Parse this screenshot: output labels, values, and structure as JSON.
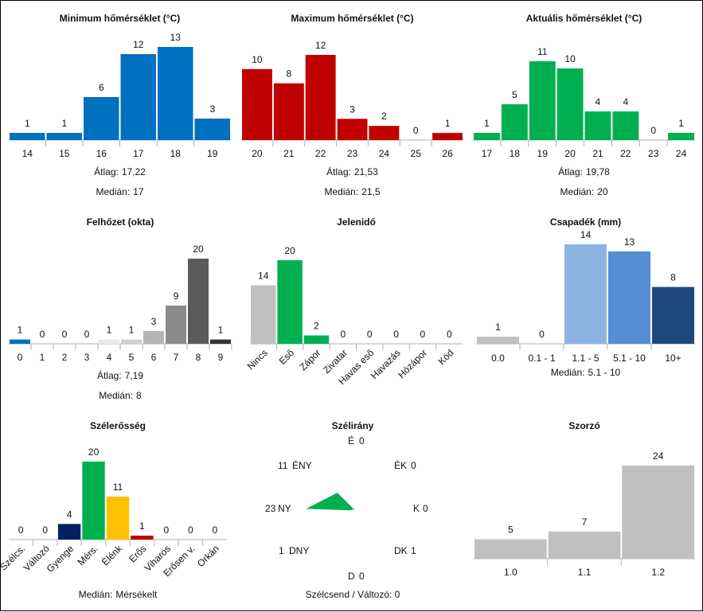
{
  "chart_data": [
    {
      "type": "bar",
      "title": "Minimum hőmérséklet (°C)",
      "categories": [
        "14",
        "15",
        "16",
        "17",
        "18",
        "19"
      ],
      "values": [
        1,
        1,
        6,
        12,
        13,
        3
      ],
      "colors": [
        "#0070c0",
        "#0070c0",
        "#0070c0",
        "#0070c0",
        "#0070c0",
        "#0070c0"
      ],
      "stats": [
        {
          "label": "Átlag:",
          "value": "17,22"
        },
        {
          "label": "Medián:",
          "value": "17"
        }
      ]
    },
    {
      "type": "bar",
      "title": "Maximum hőmérséklet (°C)",
      "categories": [
        "20",
        "21",
        "22",
        "23",
        "24",
        "25",
        "26"
      ],
      "values": [
        10,
        8,
        12,
        3,
        2,
        0,
        1
      ],
      "colors": [
        "#c00000",
        "#c00000",
        "#c00000",
        "#c00000",
        "#c00000",
        "#c00000",
        "#c00000"
      ],
      "stats": [
        {
          "label": "Átlag:",
          "value": "21,53"
        },
        {
          "label": "Medián:",
          "value": "21,5"
        }
      ]
    },
    {
      "type": "bar",
      "title": "Aktuális hőmérséklet (°C)",
      "categories": [
        "17",
        "18",
        "19",
        "20",
        "21",
        "22",
        "23",
        "24"
      ],
      "values": [
        1,
        5,
        11,
        10,
        4,
        4,
        0,
        1
      ],
      "colors": [
        "#00b050",
        "#00b050",
        "#00b050",
        "#00b050",
        "#00b050",
        "#00b050",
        "#00b050",
        "#00b050"
      ],
      "stats": [
        {
          "label": "Átlag:",
          "value": "19,78"
        },
        {
          "label": "Medián:",
          "value": "20"
        }
      ]
    },
    {
      "type": "bar",
      "title": "Felhőzet (okta)",
      "categories": [
        "0",
        "1",
        "2",
        "3",
        "4",
        "5",
        "6",
        "7",
        "8",
        "9"
      ],
      "values": [
        1,
        0,
        0,
        0,
        1,
        1,
        3,
        9,
        20,
        1
      ],
      "colors": [
        "#0070c0",
        "#ffffff",
        "#ffffff",
        "#ffffff",
        "#e8e8e8",
        "#d0d0d0",
        "#b3b3b3",
        "#8a8a8a",
        "#5a5a5a",
        "#333333"
      ],
      "stats": [
        {
          "label": "Átlag:",
          "value": "7,19"
        },
        {
          "label": "Medián:",
          "value": "8"
        }
      ]
    },
    {
      "type": "bar",
      "title": "Jelenidő",
      "categories": [
        "Nincs",
        "Eső",
        "Zápor",
        "Zivatar",
        "Havas eső",
        "Havazás",
        "Hózápor",
        "Köd"
      ],
      "values": [
        14,
        20,
        2,
        0,
        0,
        0,
        0,
        0
      ],
      "colors": [
        "#c0c0c0",
        "#00b050",
        "#00b050",
        "#00b050",
        "#00b050",
        "#00b050",
        "#00b050",
        "#00b050"
      ],
      "stats": []
    },
    {
      "type": "bar",
      "title": "Csapadék (mm)",
      "categories": [
        "0.0",
        "0.1 - 1",
        "1.1 - 5",
        "5.1 - 10",
        "10+"
      ],
      "values": [
        1,
        0,
        14,
        13,
        8
      ],
      "colors": [
        "#c0c0c0",
        "#b4c7e7",
        "#8db3e2",
        "#558ed5",
        "#1f497d"
      ],
      "stats": [
        {
          "label": "Medián:",
          "value": "5.1 - 10"
        }
      ]
    },
    {
      "type": "bar",
      "title": "Szélerősség",
      "categories": [
        "Szélcs.",
        "Változó",
        "Gyenge",
        "Mérs.",
        "Élénk",
        "Erős",
        "Viharos",
        "Erősen v.",
        "Orkán"
      ],
      "values": [
        0,
        0,
        4,
        20,
        11,
        1,
        0,
        0,
        0
      ],
      "colors": [
        "#c0c0c0",
        "#c0c0c0",
        "#002060",
        "#00b050",
        "#ffc000",
        "#c00000",
        "#7030a0",
        "#7030a0",
        "#7030a0"
      ],
      "stats": [
        {
          "label": "Medián:",
          "value": "Mérsékelt"
        }
      ]
    },
    {
      "type": "radar",
      "title": "Szélirány",
      "directions": [
        {
          "label": "É",
          "value": 0
        },
        {
          "label": "ÉK",
          "value": 0
        },
        {
          "label": "K",
          "value": 0
        },
        {
          "label": "DK",
          "value": 1
        },
        {
          "label": "D",
          "value": 0
        },
        {
          "label": "DNY",
          "value": 1
        },
        {
          "label": "NY",
          "value": 23
        },
        {
          "label": "ÉNY",
          "value": 11
        }
      ],
      "color": "#00b050",
      "footer": "Szélcsend / Változó: 0"
    },
    {
      "type": "bar",
      "title": "Szorzó",
      "categories": [
        "1.0",
        "1.1",
        "1.2"
      ],
      "values": [
        5,
        7,
        24
      ],
      "colors": [
        "#c0c0c0",
        "#c0c0c0",
        "#c0c0c0"
      ],
      "stats": []
    }
  ]
}
